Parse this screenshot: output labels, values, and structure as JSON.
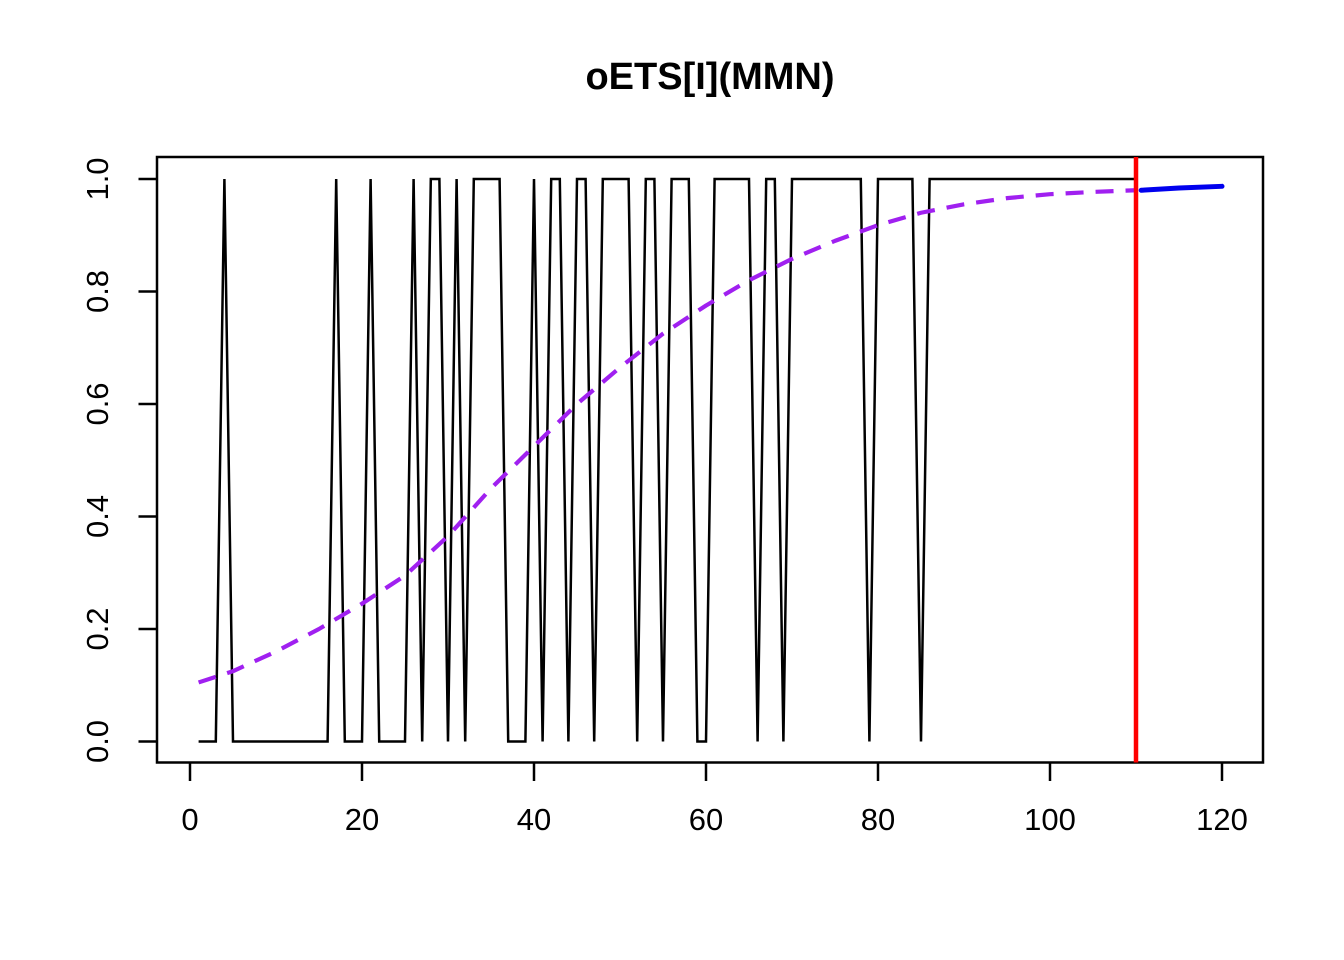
{
  "title": "oETS[I](MMN)",
  "axes": {
    "x": {
      "tick_labels": [
        "0",
        "20",
        "40",
        "60",
        "80",
        "100",
        "120"
      ],
      "tick_values": [
        0,
        20,
        40,
        60,
        80,
        100,
        120
      ]
    },
    "y": {
      "tick_labels": [
        "0.0",
        "0.2",
        "0.4",
        "0.6",
        "0.8",
        "1.0"
      ],
      "tick_values": [
        0,
        0.2,
        0.4,
        0.6,
        0.8,
        1.0
      ]
    }
  },
  "colors": {
    "actuals": "#000000",
    "fitted": "#A020F0",
    "forecast": "#0000EE",
    "split_line": "#FF0000",
    "axis": "#000000",
    "background": "#FFFFFF"
  },
  "chart_data": {
    "type": "line",
    "title": "oETS[I](MMN)",
    "xlabel": "",
    "ylabel": "",
    "xlim": [
      1,
      120
    ],
    "ylim": [
      0,
      1
    ],
    "grid": false,
    "legend": "none",
    "series": [
      {
        "name": "actuals",
        "style": "solid",
        "color": "#000000",
        "x_start": 1,
        "values": [
          0,
          0,
          0,
          1,
          0,
          0,
          0,
          0,
          0,
          0,
          0,
          0,
          0,
          0,
          0,
          0,
          1,
          0,
          0,
          0,
          1,
          0,
          0,
          0,
          0,
          1,
          0,
          1,
          1,
          0,
          1,
          0,
          1,
          1,
          1,
          1,
          0,
          0,
          0,
          1,
          0,
          1,
          1,
          0,
          1,
          1,
          0,
          1,
          1,
          1,
          1,
          0,
          1,
          1,
          0,
          1,
          1,
          1,
          0,
          0,
          1,
          1,
          1,
          1,
          1,
          0,
          1,
          1,
          0,
          1,
          1,
          1,
          1,
          1,
          1,
          1,
          1,
          1,
          0,
          1,
          1,
          1,
          1,
          1,
          0,
          1,
          1,
          1,
          1,
          1,
          1,
          1,
          1,
          1,
          1,
          1,
          1,
          1,
          1,
          1,
          1,
          1,
          1,
          1,
          1,
          1,
          1,
          1,
          1,
          1
        ]
      },
      {
        "name": "fitted",
        "style": "dashed",
        "color": "#A020F0",
        "points": [
          [
            1,
            0.105
          ],
          [
            5,
            0.125
          ],
          [
            10,
            0.16
          ],
          [
            15,
            0.2
          ],
          [
            20,
            0.245
          ],
          [
            25,
            0.295
          ],
          [
            30,
            0.365
          ],
          [
            35,
            0.45
          ],
          [
            40,
            0.525
          ],
          [
            45,
            0.6
          ],
          [
            50,
            0.665
          ],
          [
            55,
            0.725
          ],
          [
            60,
            0.775
          ],
          [
            65,
            0.82
          ],
          [
            70,
            0.858
          ],
          [
            75,
            0.89
          ],
          [
            80,
            0.918
          ],
          [
            85,
            0.94
          ],
          [
            90,
            0.955
          ],
          [
            95,
            0.966
          ],
          [
            100,
            0.973
          ],
          [
            105,
            0.977
          ],
          [
            110,
            0.98
          ]
        ]
      },
      {
        "name": "forecast",
        "style": "solid",
        "color": "#0000EE",
        "points": [
          [
            110.6,
            0.98
          ],
          [
            115,
            0.984
          ],
          [
            120,
            0.987
          ]
        ]
      }
    ],
    "vline": {
      "x": 110,
      "color": "#FF0000"
    }
  }
}
